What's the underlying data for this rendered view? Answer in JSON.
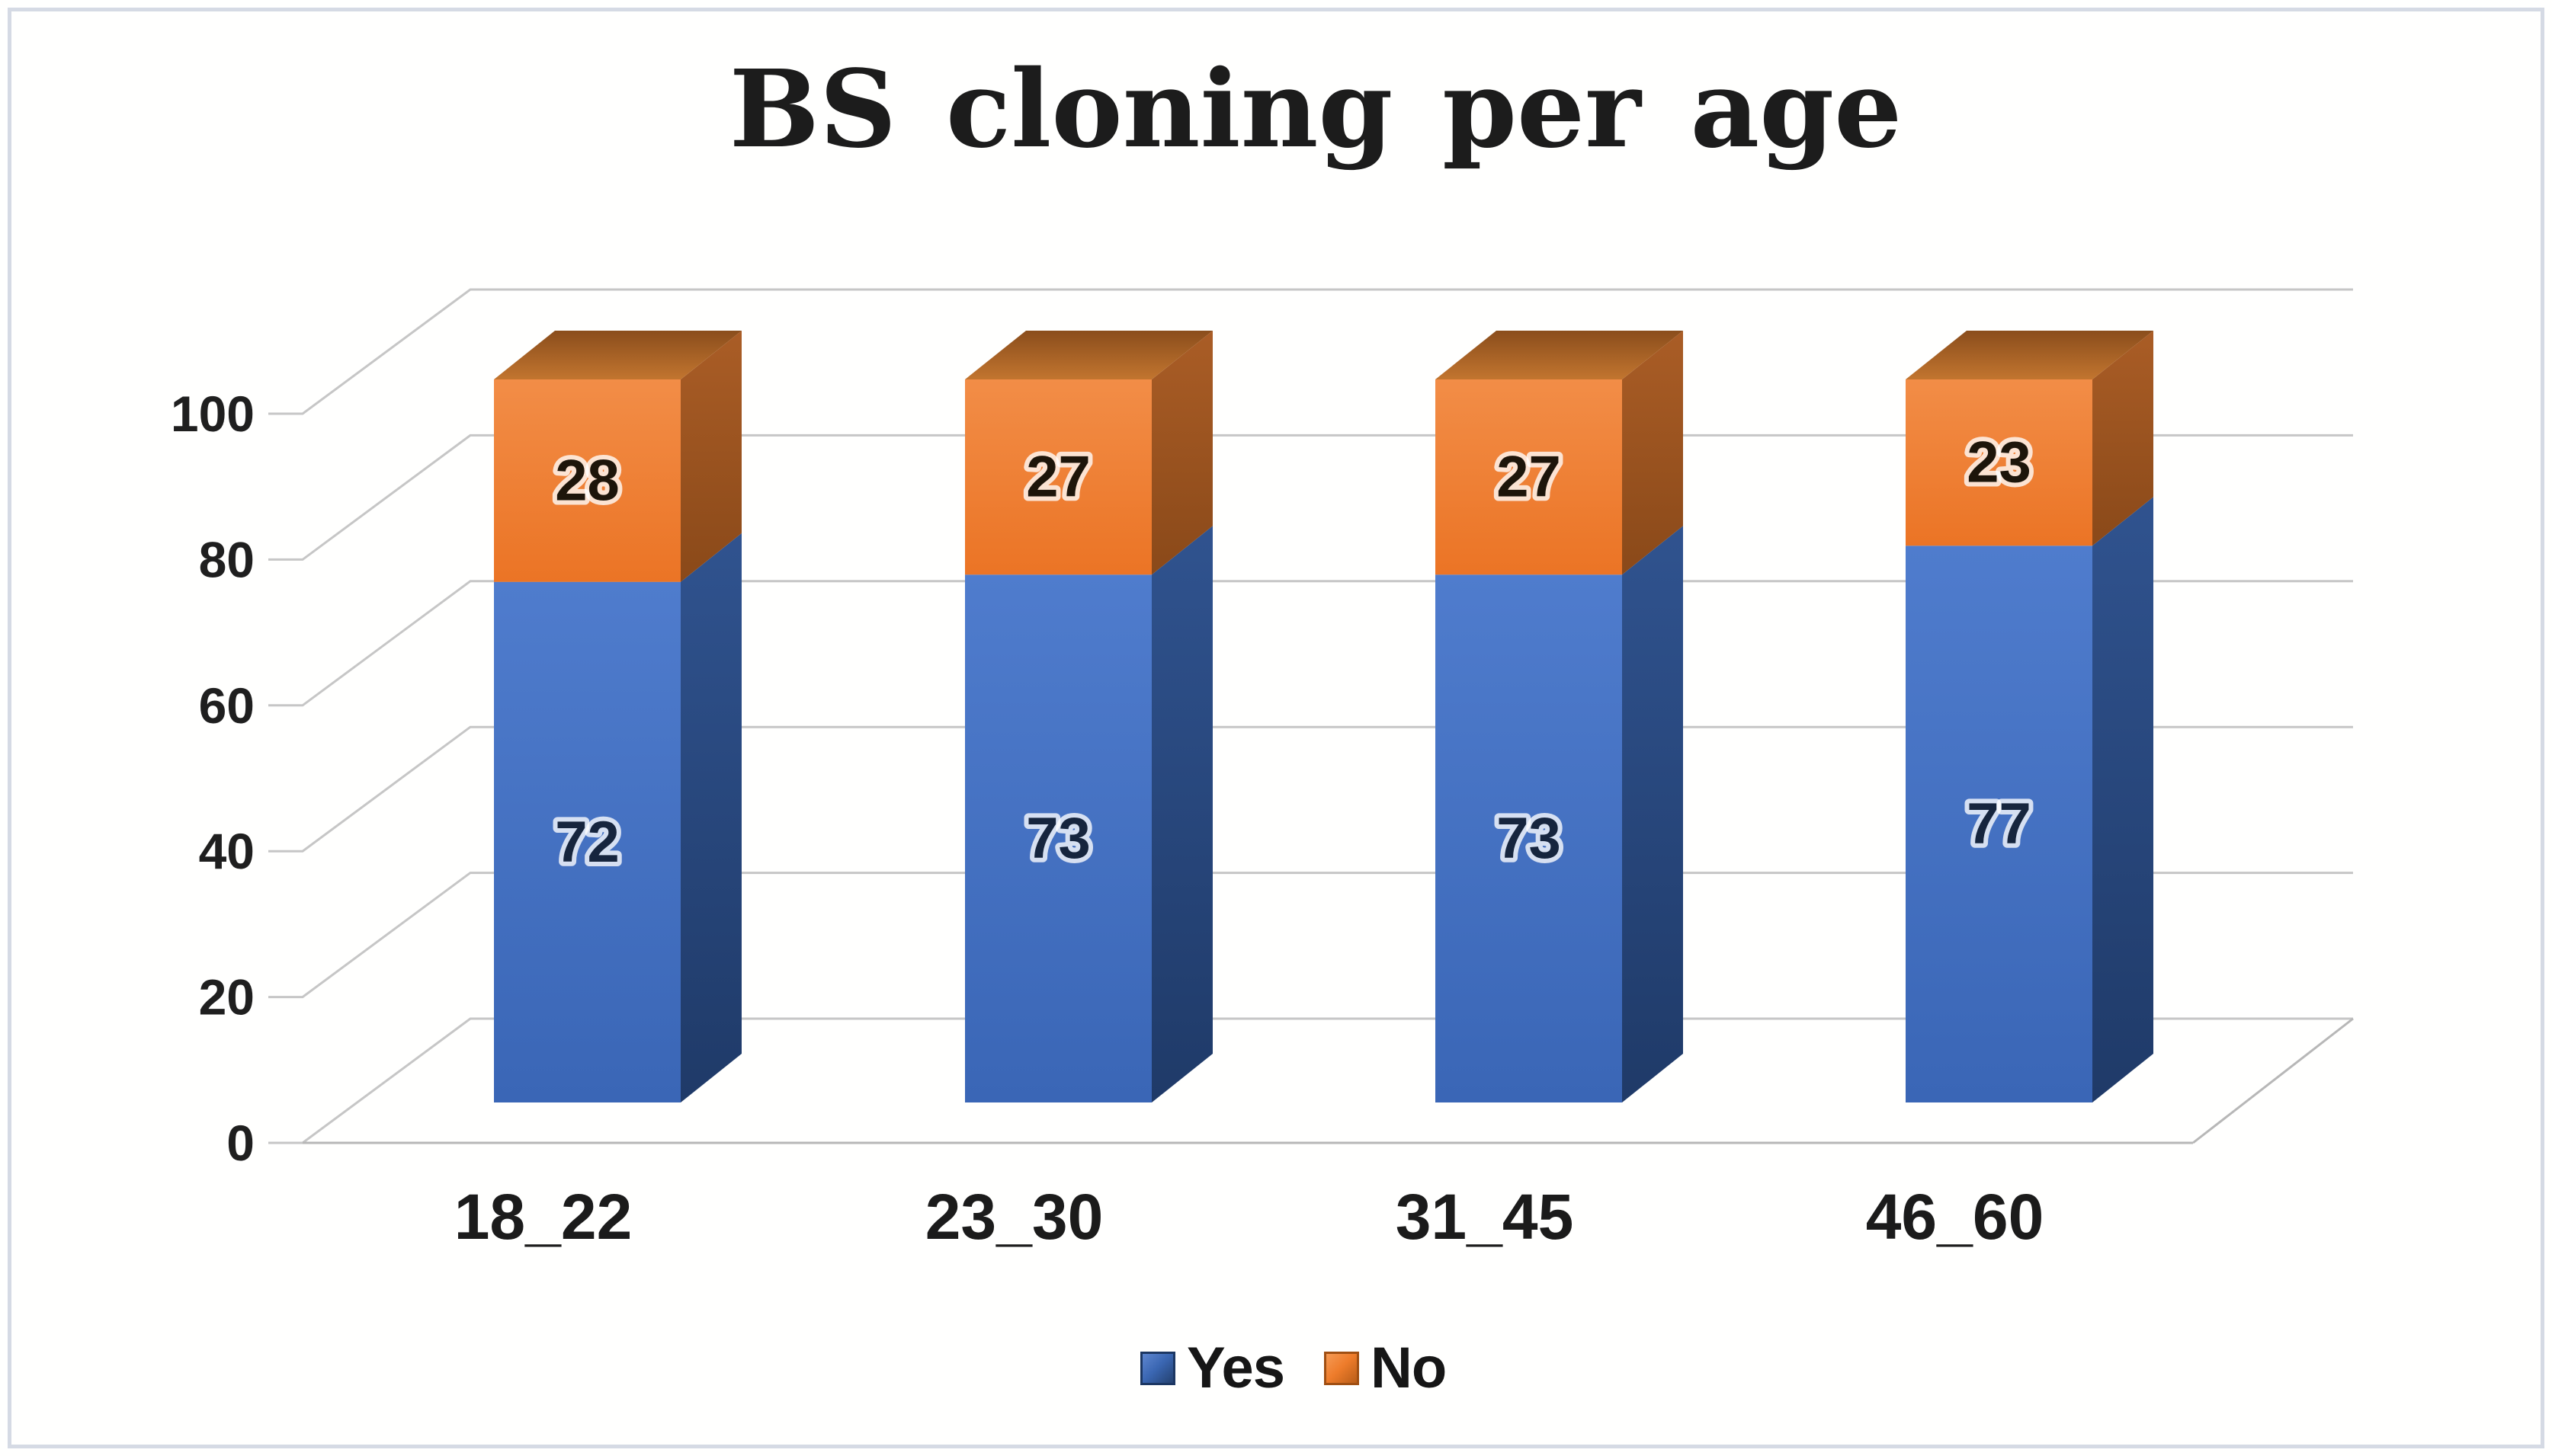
{
  "chart_data": {
    "type": "bar",
    "stacked": true,
    "projection": "3d",
    "title": "BS cloning per age",
    "categories": [
      "18_22",
      "23_30",
      "31_45",
      "46_60"
    ],
    "series": [
      {
        "name": "Yes",
        "color": "#4472C4",
        "label_color": "#16253e",
        "values": [
          72,
          73,
          73,
          77
        ]
      },
      {
        "name": "No",
        "color": "#ED7D31",
        "label_color": "#1d150a",
        "values": [
          28,
          27,
          27,
          23
        ]
      }
    ],
    "y_axis": {
      "min": 0,
      "max": 100,
      "ticks": [
        0,
        20,
        40,
        60,
        80,
        100
      ]
    },
    "grid": true,
    "data_labels": true,
    "legend_position": "bottom",
    "grid_color": "#c6c6c6",
    "background": "#ffffff",
    "border_color": "#d5dae4"
  }
}
